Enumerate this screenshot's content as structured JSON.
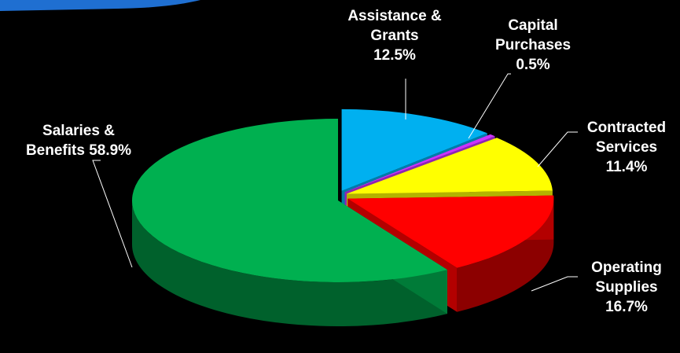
{
  "chart_data": {
    "type": "pie",
    "style": "3d-exploded",
    "background": "#000000",
    "categories": [
      "Assistance & Grants",
      "Capital Purchases",
      "Contracted Services",
      "Operating Supplies",
      "Salaries & Benefits"
    ],
    "values": [
      12.5,
      0.5,
      11.4,
      16.7,
      58.9
    ],
    "unit": "%",
    "colors": [
      "#00b0f0",
      "#cc33ff",
      "#ffff00",
      "#ff0000",
      "#00b050"
    ],
    "labels": {
      "assistance": {
        "line1": "Assistance &",
        "line2": "Grants",
        "value": "12.5%"
      },
      "capital": {
        "line1": "Capital",
        "line2": "Purchases",
        "value": "0.5%"
      },
      "contracted": {
        "line1": "Contracted",
        "line2": "Services",
        "value": "11.4%"
      },
      "operating": {
        "line1": "Operating",
        "line2": "Supplies",
        "value": "16.7%"
      },
      "salaries": {
        "line1": "Salaries &",
        "line2": "Benefits",
        "value": "58.9%"
      }
    }
  },
  "banner_color": "#1f6fd1"
}
